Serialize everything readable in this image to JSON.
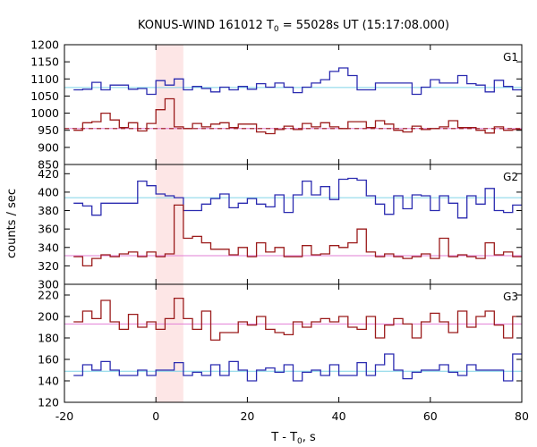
{
  "chart_data": {
    "type": "line",
    "title": {
      "prefix": "KONUS-WIND 161012 T",
      "sub": "0",
      "suffix": " = 55028s UT (15:17:08.000)"
    },
    "xlabel": {
      "prefix": "T - T",
      "sub": "0",
      "suffix": ", s"
    },
    "ylabel": "counts / sec",
    "xlim": [
      -20,
      80
    ],
    "x_ticks": [
      -20,
      0,
      20,
      40,
      60,
      80
    ],
    "highlight_interval": [
      0,
      6
    ],
    "highlight_color": "#fde6e6",
    "bin_edges": [
      -18,
      -16,
      -14,
      -12,
      -10,
      -8,
      -6,
      -4,
      -2,
      0,
      2,
      4,
      6,
      8,
      10,
      12,
      14,
      16,
      18,
      20,
      22,
      24,
      26,
      28,
      30,
      32,
      34,
      36,
      38,
      40,
      42,
      44,
      46,
      48,
      50,
      52,
      54,
      56,
      58,
      60,
      62,
      64,
      66,
      68,
      70,
      72,
      74,
      76,
      78,
      80
    ],
    "panels": [
      {
        "name": "G1",
        "ylim": [
          850,
          1200
        ],
        "y_ticks": [
          850,
          900,
          950,
          1000,
          1050,
          1100,
          1150,
          1200
        ],
        "series": [
          {
            "color": "#2b2bb0",
            "values": [
              1068,
              1070,
              1090,
              1068,
              1082,
              1082,
              1070,
              1072,
              1055,
              1095,
              1082,
              1100,
              1068,
              1078,
              1072,
              1062,
              1076,
              1068,
              1078,
              1070,
              1086,
              1076,
              1088,
              1076,
              1060,
              1076,
              1088,
              1098,
              1122,
              1132,
              1110,
              1068,
              1068,
              1088,
              1088,
              1088,
              1088,
              1055,
              1076,
              1098,
              1088,
              1088,
              1110,
              1086,
              1082,
              1062,
              1096,
              1078,
              1068
            ],
            "baseline": 1075,
            "baseline_color": "#7fd4e6",
            "baseline_style": "solid"
          },
          {
            "color": "#9b1b1b",
            "values": [
              950,
              972,
              975,
              1000,
              980,
              958,
              972,
              948,
              970,
              1010,
              1042,
              960,
              955,
              970,
              960,
              968,
              972,
              958,
              968,
              968,
              945,
              940,
              952,
              962,
              952,
              970,
              960,
              972,
              960,
              955,
              975,
              975,
              958,
              978,
              968,
              950,
              945,
              962,
              952,
              955,
              960,
              978,
              958,
              958,
              950,
              942,
              960,
              950,
              952
            ],
            "baseline": 955,
            "baseline_color": "#e27fd6",
            "baseline_style": "solid",
            "fit_line": 955,
            "fit_color": "#9b1b1b",
            "fit_style": "dashed"
          }
        ]
      },
      {
        "name": "G2",
        "ylim": [
          300,
          430
        ],
        "y_ticks": [
          300,
          320,
          340,
          360,
          380,
          400,
          420
        ],
        "series": [
          {
            "color": "#2b2bb0",
            "values": [
              388,
              385,
              375,
              388,
              388,
              388,
              388,
              412,
              407,
              398,
              396,
              394,
              380,
              380,
              387,
              393,
              398,
              383,
              388,
              393,
              387,
              384,
              397,
              378,
              397,
              412,
              397,
              406,
              392,
              414,
              415,
              413,
              396,
              387,
              376,
              396,
              382,
              397,
              396,
              380,
              396,
              388,
              372,
              396,
              387,
              404,
              380,
              378,
              386
            ],
            "baseline": 394,
            "baseline_color": "#7fd4e6",
            "baseline_style": "solid"
          },
          {
            "color": "#9b1b1b",
            "values": [
              330,
              320,
              328,
              332,
              330,
              333,
              335,
              330,
              335,
              330,
              333,
              386,
              350,
              352,
              345,
              338,
              338,
              332,
              340,
              330,
              345,
              335,
              340,
              330,
              330,
              342,
              332,
              333,
              342,
              340,
              345,
              360,
              335,
              330,
              333,
              330,
              328,
              330,
              333,
              328,
              350,
              330,
              332,
              330,
              328,
              345,
              332,
              335,
              330
            ],
            "baseline": 331,
            "baseline_color": "#e27fd6",
            "baseline_style": "solid"
          }
        ]
      },
      {
        "name": "G3",
        "ylim": [
          120,
          230
        ],
        "y_ticks": [
          120,
          140,
          160,
          180,
          200,
          220
        ],
        "series": [
          {
            "color": "#9b1b1b",
            "values": [
              195,
              205,
              198,
              215,
              195,
              188,
              202,
              190,
              195,
              188,
              198,
              217,
              198,
              188,
              205,
              178,
              185,
              185,
              195,
              192,
              200,
              188,
              185,
              183,
              195,
              190,
              195,
              198,
              195,
              200,
              190,
              188,
              200,
              180,
              192,
              198,
              193,
              180,
              195,
              203,
              195,
              185,
              205,
              190,
              200,
              205,
              192,
              180,
              200
            ],
            "baseline": 193,
            "baseline_color": "#e27fd6",
            "baseline_style": "solid"
          },
          {
            "color": "#2b2bb0",
            "values": [
              145,
              155,
              150,
              158,
              150,
              145,
              145,
              150,
              145,
              150,
              150,
              157,
              145,
              148,
              145,
              155,
              145,
              158,
              150,
              140,
              150,
              152,
              148,
              155,
              140,
              148,
              150,
              145,
              155,
              145,
              145,
              157,
              145,
              155,
              165,
              150,
              142,
              148,
              150,
              150,
              155,
              148,
              145,
              155,
              150,
              150,
              150,
              140,
              165
            ],
            "baseline": 149,
            "baseline_color": "#7fd4e6",
            "baseline_style": "solid"
          }
        ]
      }
    ]
  }
}
